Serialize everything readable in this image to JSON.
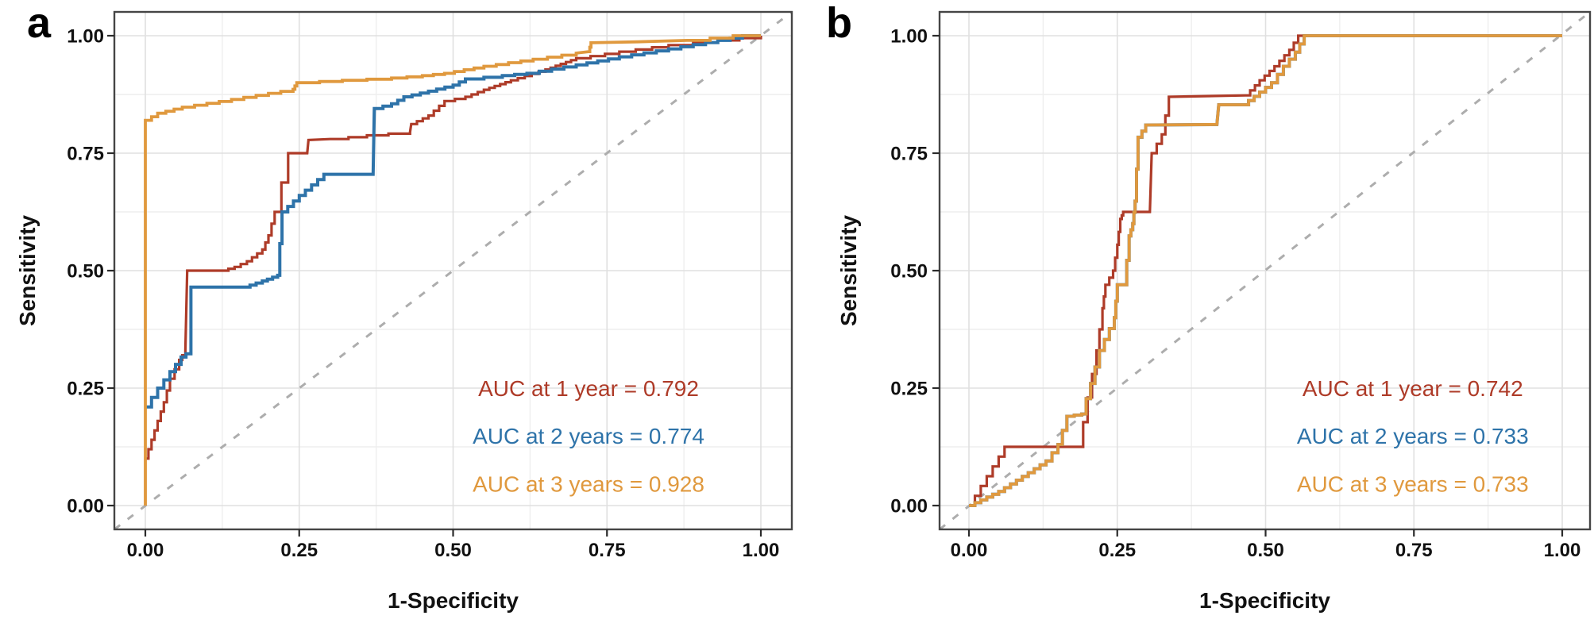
{
  "figure_title": "",
  "colors": {
    "year1": "#AE3B28",
    "year2": "#2E73A9",
    "year3": "#E0993E",
    "diagonal": "#ADADAD",
    "grid_major": "#E0E0E0",
    "grid_minor": "#EEEEEE",
    "border": "#454545",
    "tick": "#2B2B2B",
    "axis_text": "#111111",
    "background": "#FFFFFF"
  },
  "chart_data": [
    {
      "id": "panel-a",
      "type": "line",
      "panel_letter": "a",
      "xlabel": "1-Specificity",
      "ylabel": "Sensitivity",
      "xlim": [
        0,
        1
      ],
      "ylim": [
        0,
        1
      ],
      "grid": {
        "major": [
          0,
          0.25,
          0.5,
          0.75,
          1
        ],
        "minor": [
          0.125,
          0.375,
          0.625,
          0.875
        ]
      },
      "xticks": {
        "values": [
          0,
          0.25,
          0.5,
          0.75,
          1
        ],
        "labels": [
          "0.00",
          "0.25",
          "0.50",
          "0.75",
          "1.00"
        ]
      },
      "yticks": {
        "values": [
          0,
          0.25,
          0.5,
          0.75,
          1
        ],
        "labels": [
          "0.00",
          "0.25",
          "0.50",
          "0.75",
          "1.00"
        ]
      },
      "reference_line": {
        "style": "dashed-diagonal",
        "from": [
          0,
          0
        ],
        "to": [
          1,
          1
        ]
      },
      "series": [
        {
          "name": "AUC at 1 year",
          "auc": 0.792,
          "color_key": "year1",
          "points": [
            [
              0,
              0
            ],
            [
              0,
              0.1
            ],
            [
              0.01,
              0.14
            ],
            [
              0.02,
              0.18
            ],
            [
              0.03,
              0.22
            ],
            [
              0.04,
              0.27
            ],
            [
              0.055,
              0.31
            ],
            [
              0.065,
              0.33
            ],
            [
              0.068,
              0.5
            ],
            [
              0.125,
              0.5
            ],
            [
              0.145,
              0.508
            ],
            [
              0.165,
              0.52
            ],
            [
              0.19,
              0.545
            ],
            [
              0.2,
              0.575
            ],
            [
              0.21,
              0.625
            ],
            [
              0.232,
              0.75
            ],
            [
              0.263,
              0.75
            ],
            [
              0.265,
              0.778
            ],
            [
              0.3,
              0.78
            ],
            [
              0.36,
              0.788
            ],
            [
              0.43,
              0.795
            ],
            [
              0.432,
              0.812
            ],
            [
              0.46,
              0.83
            ],
            [
              0.486,
              0.861
            ],
            [
              0.52,
              0.87
            ],
            [
              0.55,
              0.885
            ],
            [
              0.594,
              0.905
            ],
            [
              0.65,
              0.928
            ],
            [
              0.7,
              0.952
            ],
            [
              0.77,
              0.966
            ],
            [
              0.85,
              0.98
            ],
            [
              0.93,
              0.99
            ],
            [
              1,
              1
            ]
          ]
        },
        {
          "name": "AUC at 2 years",
          "auc": 0.774,
          "color_key": "year2",
          "points": [
            [
              0,
              0.21
            ],
            [
              0.02,
              0.25
            ],
            [
              0.04,
              0.285
            ],
            [
              0.058,
              0.316
            ],
            [
              0.074,
              0.33
            ],
            [
              0.074,
              0.465
            ],
            [
              0.16,
              0.465
            ],
            [
              0.19,
              0.478
            ],
            [
              0.215,
              0.49
            ],
            [
              0.222,
              0.625
            ],
            [
              0.25,
              0.66
            ],
            [
              0.29,
              0.705
            ],
            [
              0.37,
              0.705
            ],
            [
              0.372,
              0.845
            ],
            [
              0.4,
              0.855
            ],
            [
              0.42,
              0.87
            ],
            [
              0.46,
              0.882
            ],
            [
              0.5,
              0.895
            ],
            [
              0.52,
              0.908
            ],
            [
              0.58,
              0.915
            ],
            [
              0.62,
              0.92
            ],
            [
              0.7,
              0.938
            ],
            [
              0.77,
              0.955
            ],
            [
              0.85,
              0.972
            ],
            [
              0.93,
              0.99
            ],
            [
              0.97,
              1
            ],
            [
              1,
              1
            ]
          ]
        },
        {
          "name": "AUC at 3 years",
          "auc": 0.928,
          "color_key": "year3",
          "points": [
            [
              0,
              0
            ],
            [
              0,
              0.82
            ],
            [
              0.02,
              0.835
            ],
            [
              0.06,
              0.848
            ],
            [
              0.12,
              0.86
            ],
            [
              0.18,
              0.873
            ],
            [
              0.24,
              0.886
            ],
            [
              0.246,
              0.9
            ],
            [
              0.32,
              0.905
            ],
            [
              0.4,
              0.91
            ],
            [
              0.45,
              0.915
            ],
            [
              0.486,
              0.92
            ],
            [
              0.55,
              0.935
            ],
            [
              0.63,
              0.95
            ],
            [
              0.7,
              0.963
            ],
            [
              0.72,
              0.966
            ],
            [
              0.724,
              0.985
            ],
            [
              0.8,
              0.987
            ],
            [
              0.88,
              0.99
            ],
            [
              0.955,
              1
            ],
            [
              1,
              1
            ]
          ]
        }
      ],
      "annotations": [
        {
          "text": "AUC at 1 year = 0.792",
          "color_key": "year1",
          "x": 0.72,
          "y": 0.25
        },
        {
          "text": "AUC at 2 years = 0.774",
          "color_key": "year2",
          "x": 0.72,
          "y": 0.148
        },
        {
          "text": "AUC at 3 years = 0.928",
          "color_key": "year3",
          "x": 0.72,
          "y": 0.046
        }
      ]
    },
    {
      "id": "panel-b",
      "type": "line",
      "panel_letter": "b",
      "xlabel": "1-Specificity",
      "ylabel": "Sensitivity",
      "xlim": [
        0,
        1
      ],
      "ylim": [
        0,
        1
      ],
      "grid": {
        "major": [
          0,
          0.25,
          0.5,
          0.75,
          1
        ],
        "minor": [
          0.125,
          0.375,
          0.625,
          0.875
        ]
      },
      "xticks": {
        "values": [
          0,
          0.25,
          0.5,
          0.75,
          1
        ],
        "labels": [
          "0.00",
          "0.25",
          "0.50",
          "0.75",
          "1.00"
        ]
      },
      "yticks": {
        "values": [
          0,
          0.25,
          0.5,
          0.75,
          1
        ],
        "labels": [
          "0.00",
          "0.25",
          "0.50",
          "0.75",
          "1.00"
        ]
      },
      "reference_line": {
        "style": "dashed-diagonal",
        "from": [
          0,
          0
        ],
        "to": [
          1,
          1
        ]
      },
      "series": [
        {
          "name": "AUC at 1 year",
          "auc": 0.742,
          "color_key": "year1",
          "points": [
            [
              0,
              0
            ],
            [
              0.06,
              0.125
            ],
            [
              0.185,
              0.125
            ],
            [
              0.2,
              0.23
            ],
            [
              0.215,
              0.33
            ],
            [
              0.225,
              0.42
            ],
            [
              0.23,
              0.47
            ],
            [
              0.243,
              0.5
            ],
            [
              0.25,
              0.555
            ],
            [
              0.255,
              0.61
            ],
            [
              0.26,
              0.625
            ],
            [
              0.305,
              0.625
            ],
            [
              0.308,
              0.75
            ],
            [
              0.325,
              0.79
            ],
            [
              0.337,
              0.87
            ],
            [
              0.466,
              0.873
            ],
            [
              0.49,
              0.905
            ],
            [
              0.515,
              0.935
            ],
            [
              0.54,
              0.97
            ],
            [
              0.555,
              1
            ],
            [
              1,
              1
            ]
          ]
        },
        {
          "name": "AUC at 2 years",
          "auc": 0.733,
          "color_key": "year2",
          "hidden_under": "AUC at 3 years",
          "points": [
            [
              0,
              0
            ],
            [
              0.05,
              0.03
            ],
            [
              0.1,
              0.07
            ],
            [
              0.13,
              0.095
            ],
            [
              0.15,
              0.13
            ],
            [
              0.165,
              0.19
            ],
            [
              0.19,
              0.195
            ],
            [
              0.205,
              0.26
            ],
            [
              0.22,
              0.33
            ],
            [
              0.245,
              0.4
            ],
            [
              0.25,
              0.47
            ],
            [
              0.262,
              0.47
            ],
            [
              0.27,
              0.574
            ],
            [
              0.276,
              0.6
            ],
            [
              0.28,
              0.648
            ],
            [
              0.285,
              0.784
            ],
            [
              0.298,
              0.81
            ],
            [
              0.418,
              0.811
            ],
            [
              0.421,
              0.853
            ],
            [
              0.462,
              0.853
            ],
            [
              0.49,
              0.88
            ],
            [
              0.51,
              0.9
            ],
            [
              0.53,
              0.935
            ],
            [
              0.55,
              0.965
            ],
            [
              0.565,
              1
            ],
            [
              1,
              1
            ]
          ]
        },
        {
          "name": "AUC at 3 years",
          "auc": 0.733,
          "color_key": "year3",
          "points": [
            [
              0,
              0
            ],
            [
              0.05,
              0.03
            ],
            [
              0.1,
              0.07
            ],
            [
              0.13,
              0.095
            ],
            [
              0.15,
              0.13
            ],
            [
              0.165,
              0.19
            ],
            [
              0.19,
              0.195
            ],
            [
              0.205,
              0.26
            ],
            [
              0.22,
              0.33
            ],
            [
              0.245,
              0.4
            ],
            [
              0.25,
              0.47
            ],
            [
              0.262,
              0.47
            ],
            [
              0.27,
              0.574
            ],
            [
              0.276,
              0.6
            ],
            [
              0.28,
              0.648
            ],
            [
              0.285,
              0.784
            ],
            [
              0.298,
              0.81
            ],
            [
              0.418,
              0.811
            ],
            [
              0.421,
              0.853
            ],
            [
              0.462,
              0.853
            ],
            [
              0.49,
              0.88
            ],
            [
              0.51,
              0.9
            ],
            [
              0.53,
              0.935
            ],
            [
              0.55,
              0.965
            ],
            [
              0.565,
              1
            ],
            [
              1,
              1
            ]
          ]
        }
      ],
      "annotations": [
        {
          "text": "AUC at 1 year = 0.742",
          "color_key": "year1",
          "x": 0.748,
          "y": 0.25
        },
        {
          "text": "AUC at 2 years = 0.733",
          "color_key": "year2",
          "x": 0.748,
          "y": 0.148
        },
        {
          "text": "AUC at 3 years = 0.733",
          "color_key": "year3",
          "x": 0.748,
          "y": 0.046
        }
      ]
    }
  ]
}
